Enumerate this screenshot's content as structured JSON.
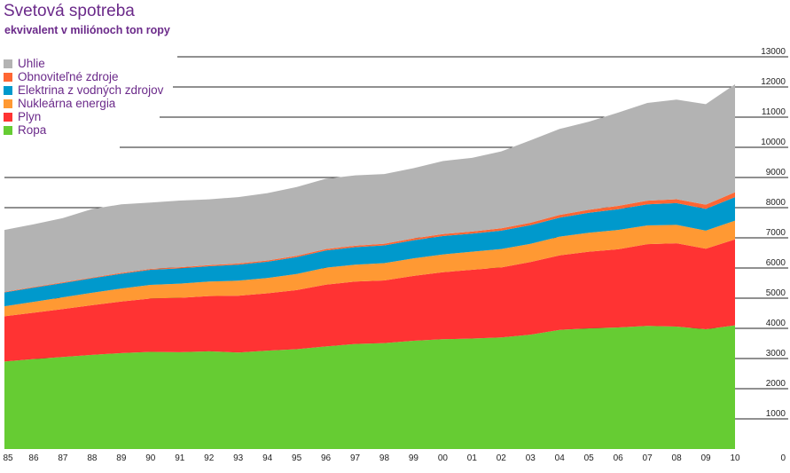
{
  "chart_data": {
    "type": "area",
    "stacked": true,
    "title": "Svetová spotreba",
    "subtitle": "ekvivalent v miliónoch ton ropy",
    "x": [
      "85",
      "86",
      "87",
      "88",
      "89",
      "90",
      "91",
      "92",
      "93",
      "94",
      "95",
      "96",
      "97",
      "98",
      "99",
      "00",
      "01",
      "02",
      "03",
      "04",
      "05",
      "06",
      "07",
      "08",
      "09",
      "10"
    ],
    "y_ticks": [
      "0",
      "1000",
      "2000",
      "3000",
      "4000",
      "5000",
      "6000",
      "7000",
      "8000",
      "9000",
      "10000",
      "11000",
      "12000",
      "13000"
    ],
    "ylim": [
      0,
      13000
    ],
    "y_axis_side": "right",
    "grid": "horizontal",
    "legend_position": "top-left",
    "series": [
      {
        "name": "Ropa",
        "color": "#66cc33",
        "values": [
          2900,
          2980,
          3050,
          3120,
          3180,
          3220,
          3210,
          3240,
          3200,
          3260,
          3310,
          3400,
          3480,
          3510,
          3590,
          3640,
          3660,
          3700,
          3790,
          3950,
          4000,
          4030,
          4080,
          4060,
          3970,
          4100
        ]
      },
      {
        "name": "Plyn",
        "color": "#ff3333",
        "values": [
          1500,
          1540,
          1590,
          1650,
          1710,
          1770,
          1800,
          1830,
          1880,
          1900,
          1960,
          2050,
          2070,
          2080,
          2150,
          2220,
          2280,
          2320,
          2410,
          2470,
          2540,
          2590,
          2710,
          2760,
          2670,
          2850
        ]
      },
      {
        "name": "Nukleárna energia",
        "color": "#ff9933",
        "values": [
          330,
          360,
          390,
          410,
          430,
          450,
          470,
          480,
          500,
          510,
          530,
          560,
          560,
          570,
          580,
          590,
          600,
          610,
          600,
          620,
          630,
          640,
          620,
          610,
          600,
          620
        ]
      },
      {
        "name": "Elektrina z vodných zdrojov",
        "color": "#0099cc",
        "values": [
          460,
          470,
          470,
          480,
          490,
          500,
          510,
          510,
          530,
          540,
          560,
          570,
          580,
          590,
          600,
          610,
          600,
          610,
          620,
          630,
          660,
          690,
          700,
          720,
          720,
          780
        ]
      },
      {
        "name": "Obnoviteľné zdroje",
        "color": "#ff6633",
        "values": [
          20,
          20,
          25,
          25,
          30,
          30,
          35,
          35,
          40,
          40,
          45,
          50,
          50,
          55,
          60,
          65,
          70,
          75,
          80,
          90,
          100,
          110,
          120,
          130,
          140,
          160
        ]
      },
      {
        "name": "Uhlie",
        "color": "#b3b3b3",
        "values": [
          2050,
          2080,
          2130,
          2270,
          2270,
          2200,
          2210,
          2180,
          2200,
          2230,
          2280,
          2330,
          2330,
          2310,
          2330,
          2420,
          2440,
          2550,
          2730,
          2850,
          2920,
          3090,
          3240,
          3300,
          3330,
          3580
        ]
      }
    ]
  },
  "legend_order": [
    "Uhlie",
    "Obnoviteľné zdroje",
    "Elektrina z vodných zdrojov",
    "Nukleárna energia",
    "Plyn",
    "Ropa"
  ]
}
